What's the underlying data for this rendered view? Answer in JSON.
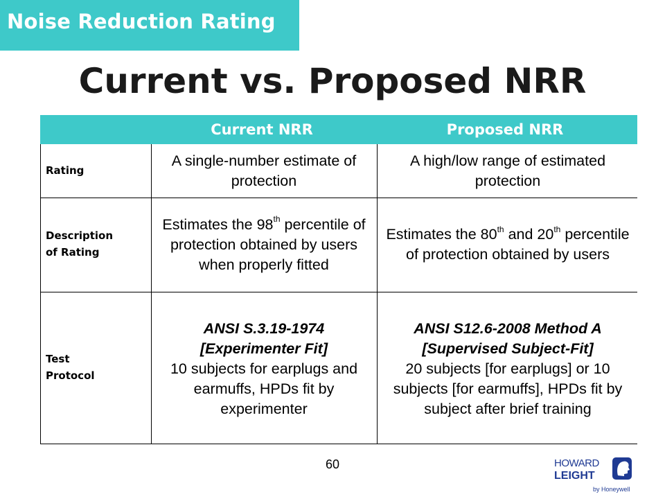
{
  "banner": {
    "text": "Noise Reduction Rating",
    "color": "#3ec9c9"
  },
  "title": "Current vs. Proposed NRR",
  "table": {
    "headers": [
      "",
      "Current NRR",
      "Proposed NRR"
    ],
    "rows": [
      {
        "label": "Rating",
        "current": {
          "text": "A single-number estimate of protection"
        },
        "proposed": {
          "text": "A high/low range of estimated protection"
        }
      },
      {
        "label_line1": "Description",
        "label_line2": "of Rating",
        "current": {
          "part1": "Estimates the 98",
          "sup1": "th",
          "part2": "percentile of protection obtained by users when properly fitted"
        },
        "proposed": {
          "part1": "Estimates the 80",
          "sup1": "th",
          "part2": " and 20",
          "sup2": "th",
          "part3": "percentile of protection obtained by users"
        }
      },
      {
        "label_line1": "Test",
        "label_line2": "Protocol",
        "current": {
          "standard": "ANSI S.3.19-1974 [Experimenter Fit]",
          "text": "10 subjects for earplugs and earmuffs, HPDs fit by experimenter"
        },
        "proposed": {
          "standard": "ANSI S12.6-2008 Method A [Supervised Subject-Fit]",
          "text": "20 subjects [for earplugs] or 10 subjects [for earmuffs], HPDs fit by subject after brief training"
        }
      }
    ]
  },
  "page_number": "60",
  "logo": {
    "line1": "HOWARD",
    "line2": "LEIGHT",
    "line3": "by Honeywell",
    "icon": "face-profile-icon",
    "color": "#1f3a93"
  }
}
